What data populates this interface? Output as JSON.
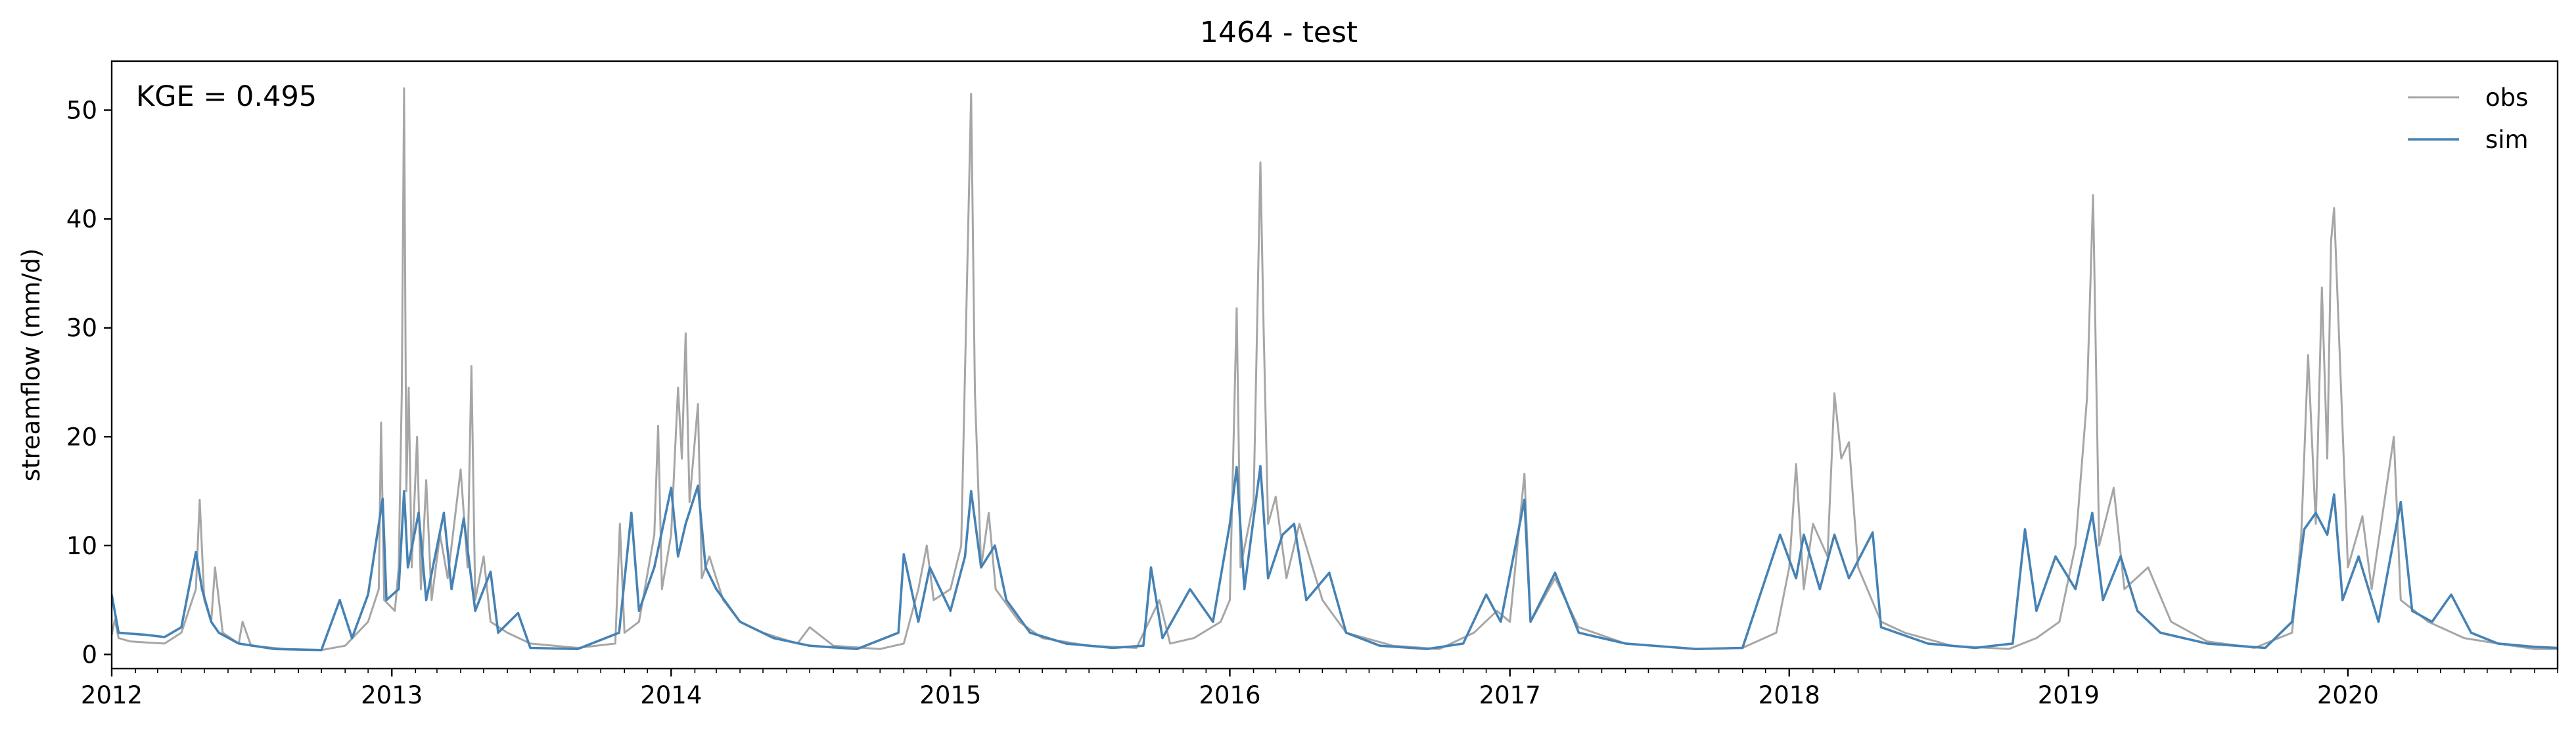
{
  "chart_data": {
    "type": "line",
    "title": "1464 - test",
    "ylabel": "streamflow (mm/d)",
    "xlabel": "",
    "annotation": "KGE = 0.495",
    "x_range": [
      "2012-01-01",
      "2020-10-01"
    ],
    "ylim": [
      -1.3,
      54.5
    ],
    "y_ticks": [
      0,
      10,
      20,
      30,
      40,
      50
    ],
    "y_tick_labels": [
      "0",
      "10",
      "20",
      "30",
      "40",
      "50"
    ],
    "x_ticks": [
      "2012-01-01",
      "2013-01-01",
      "2014-01-01",
      "2015-01-01",
      "2016-01-01",
      "2017-01-01",
      "2018-01-01",
      "2019-01-01",
      "2020-01-01"
    ],
    "x_tick_labels": [
      "2012",
      "2013",
      "2014",
      "2015",
      "2016",
      "2017",
      "2018",
      "2019",
      "2020"
    ],
    "grid": false,
    "legend_position": "top-right",
    "series": [
      {
        "name": "obs",
        "color": "#a6a6a6",
        "points": [
          [
            "2012-01-01",
            1.8
          ],
          [
            "2012-01-05",
            3.2
          ],
          [
            "2012-01-10",
            1.5
          ],
          [
            "2012-01-25",
            1.2
          ],
          [
            "2012-02-15",
            1.1
          ],
          [
            "2012-03-10",
            1.0
          ],
          [
            "2012-04-01",
            2.0
          ],
          [
            "2012-04-20",
            6.0
          ],
          [
            "2012-04-25",
            14.2
          ],
          [
            "2012-05-01",
            5.0
          ],
          [
            "2012-05-10",
            3.0
          ],
          [
            "2012-05-15",
            8.0
          ],
          [
            "2012-05-25",
            2.0
          ],
          [
            "2012-06-15",
            1.0
          ],
          [
            "2012-06-20",
            3.0
          ],
          [
            "2012-07-01",
            0.8
          ],
          [
            "2012-08-15",
            0.5
          ],
          [
            "2012-10-01",
            0.4
          ],
          [
            "2012-11-01",
            0.8
          ],
          [
            "2012-12-01",
            3.0
          ],
          [
            "2012-12-15",
            6.0
          ],
          [
            "2012-12-18",
            21.3
          ],
          [
            "2012-12-22",
            5.0
          ],
          [
            "2013-01-05",
            4.0
          ],
          [
            "2013-01-10",
            8.0
          ],
          [
            "2013-01-14",
            24.0
          ],
          [
            "2013-01-17",
            52.0
          ],
          [
            "2013-01-20",
            15.0
          ],
          [
            "2013-01-23",
            24.5
          ],
          [
            "2013-01-27",
            8.0
          ],
          [
            "2013-02-03",
            20.0
          ],
          [
            "2013-02-08",
            6.0
          ],
          [
            "2013-02-15",
            16.0
          ],
          [
            "2013-02-22",
            5.0
          ],
          [
            "2013-03-05",
            11.0
          ],
          [
            "2013-03-15",
            7.0
          ],
          [
            "2013-04-01",
            17.0
          ],
          [
            "2013-04-10",
            8.0
          ],
          [
            "2013-04-15",
            26.5
          ],
          [
            "2013-04-20",
            5.0
          ],
          [
            "2013-05-01",
            9.0
          ],
          [
            "2013-05-10",
            3.0
          ],
          [
            "2013-06-01",
            2.0
          ],
          [
            "2013-07-01",
            1.0
          ],
          [
            "2013-09-01",
            0.6
          ],
          [
            "2013-10-20",
            1.0
          ],
          [
            "2013-10-26",
            12.0
          ],
          [
            "2013-11-01",
            2.0
          ],
          [
            "2013-11-20",
            3.0
          ],
          [
            "2013-12-10",
            11.0
          ],
          [
            "2013-12-15",
            21.0
          ],
          [
            "2013-12-20",
            6.0
          ],
          [
            "2014-01-01",
            11.0
          ],
          [
            "2014-01-10",
            24.5
          ],
          [
            "2014-01-15",
            18.0
          ],
          [
            "2014-01-20",
            29.5
          ],
          [
            "2014-01-25",
            14.0
          ],
          [
            "2014-02-05",
            23.0
          ],
          [
            "2014-02-10",
            7.0
          ],
          [
            "2014-02-20",
            9.0
          ],
          [
            "2014-03-10",
            5.0
          ],
          [
            "2014-04-01",
            3.0
          ],
          [
            "2014-05-01",
            2.0
          ],
          [
            "2014-06-15",
            1.0
          ],
          [
            "2014-07-01",
            2.5
          ],
          [
            "2014-08-01",
            0.8
          ],
          [
            "2014-10-01",
            0.5
          ],
          [
            "2014-11-01",
            1.0
          ],
          [
            "2014-11-20",
            6.0
          ],
          [
            "2014-12-01",
            10.0
          ],
          [
            "2014-12-10",
            5.0
          ],
          [
            "2015-01-01",
            6.0
          ],
          [
            "2015-01-15",
            10.0
          ],
          [
            "2015-01-28",
            51.5
          ],
          [
            "2015-02-02",
            24.0
          ],
          [
            "2015-02-10",
            8.0
          ],
          [
            "2015-02-20",
            13.0
          ],
          [
            "2015-03-01",
            6.0
          ],
          [
            "2015-04-01",
            3.0
          ],
          [
            "2015-05-01",
            1.5
          ],
          [
            "2015-07-01",
            0.8
          ],
          [
            "2015-09-01",
            0.6
          ],
          [
            "2015-10-01",
            5.0
          ],
          [
            "2015-10-15",
            1.0
          ],
          [
            "2015-11-15",
            1.5
          ],
          [
            "2015-12-20",
            3.0
          ],
          [
            "2016-01-01",
            5.0
          ],
          [
            "2016-01-10",
            31.8
          ],
          [
            "2016-01-15",
            8.0
          ],
          [
            "2016-02-01",
            14.0
          ],
          [
            "2016-02-10",
            45.2
          ],
          [
            "2016-02-14",
            30.5
          ],
          [
            "2016-02-20",
            12.0
          ],
          [
            "2016-03-01",
            14.5
          ],
          [
            "2016-03-15",
            7.0
          ],
          [
            "2016-04-01",
            12.0
          ],
          [
            "2016-05-01",
            5.0
          ],
          [
            "2016-06-01",
            2.0
          ],
          [
            "2016-08-01",
            0.8
          ],
          [
            "2016-10-01",
            0.5
          ],
          [
            "2016-11-15",
            2.0
          ],
          [
            "2016-12-15",
            4.0
          ],
          [
            "2017-01-01",
            3.0
          ],
          [
            "2017-01-20",
            16.6
          ],
          [
            "2017-01-28",
            3.0
          ],
          [
            "2017-03-01",
            7.0
          ],
          [
            "2017-04-01",
            2.5
          ],
          [
            "2017-06-01",
            1.0
          ],
          [
            "2017-09-01",
            0.5
          ],
          [
            "2017-11-01",
            0.6
          ],
          [
            "2017-12-15",
            2.0
          ],
          [
            "2018-01-01",
            8.0
          ],
          [
            "2018-01-10",
            17.5
          ],
          [
            "2018-01-20",
            6.0
          ],
          [
            "2018-02-01",
            12.0
          ],
          [
            "2018-02-20",
            9.0
          ],
          [
            "2018-03-01",
            24.0
          ],
          [
            "2018-03-10",
            18.0
          ],
          [
            "2018-03-20",
            19.5
          ],
          [
            "2018-04-01",
            8.0
          ],
          [
            "2018-05-01",
            3.0
          ],
          [
            "2018-06-01",
            2.0
          ],
          [
            "2018-08-01",
            0.8
          ],
          [
            "2018-10-15",
            0.5
          ],
          [
            "2018-11-20",
            1.5
          ],
          [
            "2018-12-20",
            3.0
          ],
          [
            "2019-01-10",
            10.0
          ],
          [
            "2019-01-25",
            23.5
          ],
          [
            "2019-02-02",
            42.2
          ],
          [
            "2019-02-10",
            10.0
          ],
          [
            "2019-03-01",
            15.3
          ],
          [
            "2019-03-15",
            6.0
          ],
          [
            "2019-04-15",
            8.0
          ],
          [
            "2019-05-15",
            3.0
          ],
          [
            "2019-07-01",
            1.2
          ],
          [
            "2019-09-01",
            0.6
          ],
          [
            "2019-10-20",
            2.0
          ],
          [
            "2019-11-01",
            11.0
          ],
          [
            "2019-11-10",
            27.5
          ],
          [
            "2019-11-20",
            12.0
          ],
          [
            "2019-11-28",
            33.7
          ],
          [
            "2019-12-05",
            18.0
          ],
          [
            "2019-12-10",
            38.0
          ],
          [
            "2019-12-14",
            41.0
          ],
          [
            "2019-12-20",
            30.0
          ],
          [
            "2020-01-01",
            8.0
          ],
          [
            "2020-01-20",
            12.7
          ],
          [
            "2020-02-01",
            6.0
          ],
          [
            "2020-03-01",
            20.0
          ],
          [
            "2020-03-10",
            5.0
          ],
          [
            "2020-04-15",
            3.0
          ],
          [
            "2020-06-01",
            1.5
          ],
          [
            "2020-07-15",
            1.0
          ],
          [
            "2020-09-01",
            0.5
          ],
          [
            "2020-10-01",
            0.5
          ]
        ]
      },
      {
        "name": "sim",
        "color": "#4682b4",
        "points": [
          [
            "2012-01-01",
            5.5
          ],
          [
            "2012-01-10",
            2.0
          ],
          [
            "2012-02-15",
            1.8
          ],
          [
            "2012-03-10",
            1.6
          ],
          [
            "2012-04-01",
            2.5
          ],
          [
            "2012-04-20",
            9.4
          ],
          [
            "2012-04-28",
            6.0
          ],
          [
            "2012-05-10",
            3.0
          ],
          [
            "2012-05-20",
            2.0
          ],
          [
            "2012-06-15",
            1.0
          ],
          [
            "2012-08-01",
            0.5
          ],
          [
            "2012-10-01",
            0.4
          ],
          [
            "2012-10-25",
            5.0
          ],
          [
            "2012-11-10",
            1.5
          ],
          [
            "2012-12-01",
            5.5
          ],
          [
            "2012-12-20",
            14.3
          ],
          [
            "2012-12-25",
            5.0
          ],
          [
            "2013-01-10",
            6.0
          ],
          [
            "2013-01-17",
            15.0
          ],
          [
            "2013-01-22",
            8.0
          ],
          [
            "2013-02-05",
            13.0
          ],
          [
            "2013-02-15",
            5.0
          ],
          [
            "2013-03-10",
            13.0
          ],
          [
            "2013-03-20",
            6.0
          ],
          [
            "2013-04-05",
            12.5
          ],
          [
            "2013-04-20",
            4.0
          ],
          [
            "2013-05-10",
            7.6
          ],
          [
            "2013-05-20",
            2.0
          ],
          [
            "2013-06-15",
            3.8
          ],
          [
            "2013-07-01",
            0.6
          ],
          [
            "2013-09-01",
            0.5
          ],
          [
            "2013-10-25",
            2.0
          ],
          [
            "2013-11-10",
            13.0
          ],
          [
            "2013-11-20",
            4.0
          ],
          [
            "2013-12-10",
            8.0
          ],
          [
            "2014-01-01",
            15.3
          ],
          [
            "2014-01-10",
            9.0
          ],
          [
            "2014-01-20",
            12.0
          ],
          [
            "2014-02-05",
            15.5
          ],
          [
            "2014-02-15",
            8.0
          ],
          [
            "2014-03-01",
            6.0
          ],
          [
            "2014-04-01",
            3.0
          ],
          [
            "2014-05-15",
            1.5
          ],
          [
            "2014-07-01",
            0.8
          ],
          [
            "2014-09-01",
            0.5
          ],
          [
            "2014-10-25",
            2.0
          ],
          [
            "2014-11-01",
            9.2
          ],
          [
            "2014-11-20",
            3.0
          ],
          [
            "2014-12-05",
            8.0
          ],
          [
            "2015-01-01",
            4.0
          ],
          [
            "2015-01-20",
            9.0
          ],
          [
            "2015-01-28",
            15.0
          ],
          [
            "2015-02-10",
            8.0
          ],
          [
            "2015-02-28",
            10.0
          ],
          [
            "2015-03-15",
            5.0
          ],
          [
            "2015-04-15",
            2.0
          ],
          [
            "2015-06-01",
            1.0
          ],
          [
            "2015-08-01",
            0.6
          ],
          [
            "2015-09-10",
            0.8
          ],
          [
            "2015-09-20",
            8.0
          ],
          [
            "2015-10-05",
            1.5
          ],
          [
            "2015-11-10",
            6.0
          ],
          [
            "2015-12-10",
            3.0
          ],
          [
            "2016-01-01",
            12.0
          ],
          [
            "2016-01-10",
            17.2
          ],
          [
            "2016-01-20",
            6.0
          ],
          [
            "2016-02-10",
            17.3
          ],
          [
            "2016-02-20",
            7.0
          ],
          [
            "2016-03-10",
            11.0
          ],
          [
            "2016-03-25",
            12.0
          ],
          [
            "2016-04-10",
            5.0
          ],
          [
            "2016-05-10",
            7.5
          ],
          [
            "2016-06-01",
            2.0
          ],
          [
            "2016-07-15",
            0.8
          ],
          [
            "2016-09-15",
            0.5
          ],
          [
            "2016-11-01",
            1.0
          ],
          [
            "2016-12-01",
            5.5
          ],
          [
            "2016-12-20",
            3.0
          ],
          [
            "2017-01-20",
            14.2
          ],
          [
            "2017-01-28",
            3.0
          ],
          [
            "2017-03-01",
            7.5
          ],
          [
            "2017-04-01",
            2.0
          ],
          [
            "2017-06-01",
            1.0
          ],
          [
            "2017-09-01",
            0.5
          ],
          [
            "2017-11-01",
            0.6
          ],
          [
            "2017-12-20",
            11.0
          ],
          [
            "2018-01-10",
            7.0
          ],
          [
            "2018-01-20",
            11.0
          ],
          [
            "2018-02-10",
            6.0
          ],
          [
            "2018-03-01",
            11.0
          ],
          [
            "2018-03-20",
            7.0
          ],
          [
            "2018-04-20",
            11.2
          ],
          [
            "2018-05-01",
            2.5
          ],
          [
            "2018-07-01",
            1.0
          ],
          [
            "2018-09-01",
            0.6
          ],
          [
            "2018-10-20",
            1.0
          ],
          [
            "2018-11-05",
            11.5
          ],
          [
            "2018-11-20",
            4.0
          ],
          [
            "2018-12-15",
            9.0
          ],
          [
            "2019-01-10",
            6.0
          ],
          [
            "2019-02-01",
            13.0
          ],
          [
            "2019-02-15",
            5.0
          ],
          [
            "2019-03-10",
            9.0
          ],
          [
            "2019-04-01",
            4.0
          ],
          [
            "2019-05-01",
            2.0
          ],
          [
            "2019-07-01",
            1.0
          ],
          [
            "2019-09-15",
            0.6
          ],
          [
            "2019-10-20",
            3.0
          ],
          [
            "2019-11-05",
            11.5
          ],
          [
            "2019-11-20",
            13.0
          ],
          [
            "2019-12-05",
            11.0
          ],
          [
            "2019-12-14",
            14.7
          ],
          [
            "2019-12-25",
            5.0
          ],
          [
            "2020-01-15",
            9.0
          ],
          [
            "2020-02-10",
            3.0
          ],
          [
            "2020-03-10",
            14.0
          ],
          [
            "2020-03-25",
            4.0
          ],
          [
            "2020-04-20",
            3.0
          ],
          [
            "2020-05-15",
            5.5
          ],
          [
            "2020-06-10",
            2.0
          ],
          [
            "2020-07-15",
            1.0
          ],
          [
            "2020-09-01",
            0.7
          ],
          [
            "2020-10-01",
            0.6
          ]
        ]
      }
    ]
  }
}
